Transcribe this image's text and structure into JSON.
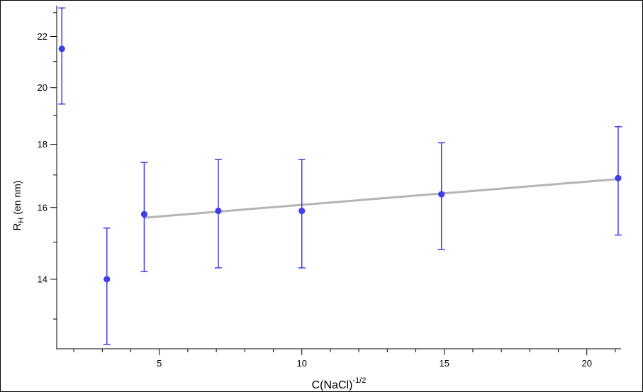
{
  "chart_data": {
    "type": "scatter",
    "xlabel": {
      "base": "C(NaCl)",
      "sup": "-1/2"
    },
    "ylabel": {
      "base": "R",
      "sub": "H",
      "rest": " (en nm)"
    },
    "xlim": [
      1.4,
      21.2
    ],
    "ylim": [
      12.3,
      23.3
    ],
    "log_y": true,
    "xticks": [
      5,
      10,
      15,
      20
    ],
    "yticks": [
      14,
      16,
      18,
      20,
      22
    ],
    "grid": false,
    "legend": "none",
    "series": [
      {
        "kind": "points-with-error-bars",
        "color": "#3f3fe8",
        "points": [
          {
            "x": 1.58,
            "y": 21.5,
            "err_low": 19.4,
            "err_high": 23.2
          },
          {
            "x": 3.16,
            "y": 14.0,
            "err_low": 12.4,
            "err_high": 15.4
          },
          {
            "x": 4.47,
            "y": 15.8,
            "err_low": 14.2,
            "err_high": 17.4
          },
          {
            "x": 7.07,
            "y": 15.9,
            "err_low": 14.3,
            "err_high": 17.5
          },
          {
            "x": 10.0,
            "y": 15.9,
            "err_low": 14.3,
            "err_high": 17.5
          },
          {
            "x": 14.9,
            "y": 16.4,
            "err_low": 14.8,
            "err_high": 18.05
          },
          {
            "x": 21.1,
            "y": 16.9,
            "err_low": 15.2,
            "err_high": 18.6
          }
        ]
      },
      {
        "kind": "fit-line",
        "color": "#b4b4b4",
        "x": [
          4.47,
          21.1
        ],
        "y": [
          15.7,
          16.87
        ]
      }
    ]
  }
}
